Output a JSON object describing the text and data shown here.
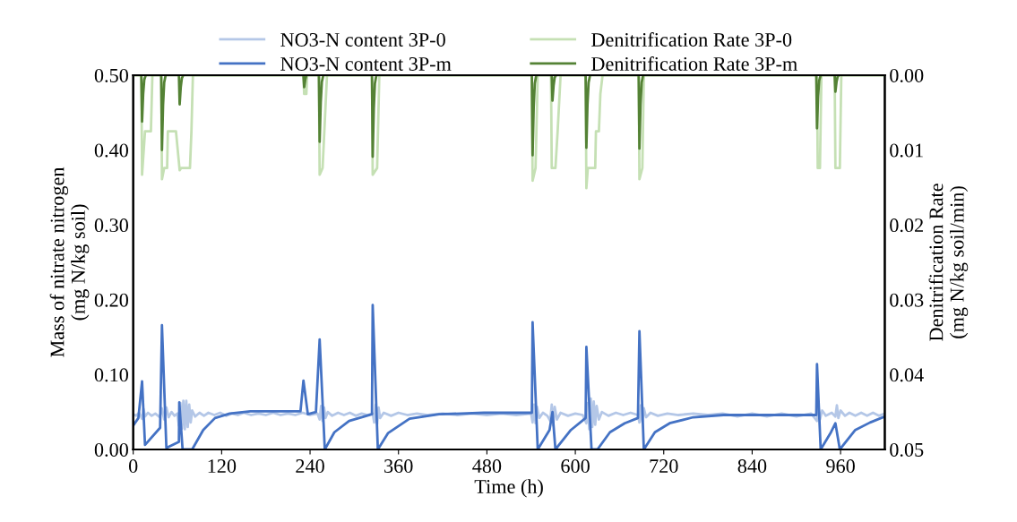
{
  "chart_data": {
    "type": "line",
    "xlabel": "Time (h)",
    "ylabel": "Mass of nitrate nitrogen\n(mg N/kg soil)",
    "y2label": "Denitrification Rate\n(mg N/kg soil/min)",
    "xlim": [
      0,
      1020
    ],
    "xticks": [
      0,
      120,
      240,
      360,
      480,
      600,
      720,
      840,
      960
    ],
    "ylim": [
      0,
      0.5
    ],
    "yticks": [
      {
        "value": 0,
        "label": "0.00"
      },
      {
        "value": 0.1,
        "label": "0.10"
      },
      {
        "value": 0.2,
        "label": "0.20"
      },
      {
        "value": 0.3,
        "label": "0.30"
      },
      {
        "value": 0.4,
        "label": "0.40"
      },
      {
        "value": 0.5,
        "label": "0.50"
      }
    ],
    "y2lim": [
      0.05,
      0
    ],
    "y2ticks": [
      {
        "value": 0,
        "label": "0.00"
      },
      {
        "value": 0.01,
        "label": "0.01"
      },
      {
        "value": 0.02,
        "label": "0.02"
      },
      {
        "value": 0.03,
        "label": "0.03"
      },
      {
        "value": 0.04,
        "label": "0.04"
      },
      {
        "value": 0.05,
        "label": "0.05"
      }
    ],
    "grid": false,
    "legend": "top",
    "marker": "none",
    "line_style": "solid",
    "series": [
      {
        "name": "NO3-N content 3P-0",
        "color": "#b4c7e7",
        "x": [
          0,
          4,
          8,
          12,
          14,
          16,
          20,
          25,
          30,
          36,
          39,
          42,
          45,
          48,
          52,
          56,
          60,
          62,
          64,
          66,
          68,
          70,
          72,
          74,
          76,
          78,
          80,
          84,
          90,
          96,
          102,
          110,
          118,
          126,
          134,
          142,
          150,
          160,
          170,
          180,
          190,
          200,
          210,
          220,
          230,
          240,
          250,
          253,
          255,
          257,
          259,
          261,
          264,
          270,
          278,
          286,
          294,
          302,
          310,
          318,
          325,
          327,
          329,
          331,
          333,
          335,
          340,
          350,
          360,
          372,
          385,
          400,
          420,
          440,
          460,
          480,
          500,
          520,
          540,
          542,
          544,
          546,
          548,
          551,
          556,
          562,
          566,
          568,
          570,
          572,
          575,
          580,
          590,
          600,
          610,
          615,
          617,
          619,
          621,
          623,
          625,
          627,
          629,
          632,
          636,
          645,
          655,
          665,
          675,
          685,
          687,
          689,
          691,
          693,
          696,
          702,
          712,
          725,
          740,
          760,
          780,
          800,
          820,
          840,
          860,
          880,
          900,
          920,
          928,
          930,
          932,
          935,
          940,
          948,
          953,
          955,
          957,
          960,
          966,
          972,
          980,
          988,
          996,
          1004,
          1012,
          1020
        ],
        "values": [
          0.047,
          0.045,
          0.049,
          0.041,
          0.054,
          0.044,
          0.049,
          0.045,
          0.048,
          0.043,
          0.055,
          0.04,
          0.056,
          0.043,
          0.05,
          0.045,
          0.048,
          0.032,
          0.062,
          0.028,
          0.065,
          0.027,
          0.065,
          0.03,
          0.06,
          0.036,
          0.052,
          0.044,
          0.049,
          0.045,
          0.049,
          0.046,
          0.049,
          0.045,
          0.048,
          0.046,
          0.049,
          0.046,
          0.048,
          0.046,
          0.049,
          0.046,
          0.048,
          0.046,
          0.049,
          0.046,
          0.048,
          0.04,
          0.058,
          0.038,
          0.056,
          0.042,
          0.05,
          0.045,
          0.049,
          0.046,
          0.049,
          0.045,
          0.048,
          0.046,
          0.048,
          0.036,
          0.06,
          0.034,
          0.056,
          0.042,
          0.049,
          0.045,
          0.049,
          0.046,
          0.048,
          0.046,
          0.048,
          0.046,
          0.048,
          0.046,
          0.048,
          0.046,
          0.048,
          0.036,
          0.06,
          0.035,
          0.057,
          0.042,
          0.049,
          0.045,
          0.038,
          0.06,
          0.032,
          0.057,
          0.04,
          0.049,
          0.045,
          0.048,
          0.046,
          0.035,
          0.062,
          0.027,
          0.068,
          0.03,
          0.064,
          0.033,
          0.058,
          0.04,
          0.05,
          0.045,
          0.049,
          0.046,
          0.049,
          0.046,
          0.036,
          0.059,
          0.037,
          0.055,
          0.043,
          0.049,
          0.045,
          0.048,
          0.046,
          0.048,
          0.046,
          0.048,
          0.044,
          0.048,
          0.044,
          0.048,
          0.044,
          0.048,
          0.038,
          0.058,
          0.04,
          0.052,
          0.045,
          0.049,
          0.044,
          0.059,
          0.042,
          0.052,
          0.045,
          0.049,
          0.045,
          0.049,
          0.045,
          0.049,
          0.045,
          0.048
        ]
      },
      {
        "name": "NO3-N content 3P-m",
        "color": "#4472c4",
        "x": [
          0,
          7,
          12,
          16,
          36.5,
          39,
          45,
          62,
          62.5,
          67,
          80,
          95,
          111,
          131,
          159,
          227,
          231,
          237,
          248,
          253,
          260,
          273,
          293,
          324,
          325,
          332,
          346,
          375,
          415,
          476,
          541,
          542,
          549,
          565,
          569,
          573,
          594,
          614,
          615,
          622,
          630,
          647,
          667,
          685,
          687,
          693,
          708,
          728,
          760,
          801,
          927,
          928,
          933,
          947,
          953,
          959,
          980,
          1000,
          1020
        ],
        "values": [
          0.032,
          0.042,
          0.091,
          0.006,
          0.029,
          0.166,
          0.002,
          0.01,
          0.063,
          0.0,
          0.0,
          0.026,
          0.042,
          0.048,
          0.051,
          0.051,
          0.092,
          0.047,
          0.05,
          0.147,
          0.0,
          0.023,
          0.038,
          0.047,
          0.193,
          0.0,
          0.022,
          0.041,
          0.047,
          0.049,
          0.049,
          0.17,
          0.0,
          0.026,
          0.05,
          0.0,
          0.026,
          0.042,
          0.137,
          0.0,
          0.0,
          0.023,
          0.035,
          0.042,
          0.158,
          0.0,
          0.023,
          0.035,
          0.043,
          0.046,
          0.046,
          0.114,
          0.0,
          0.023,
          0.035,
          0.0,
          0.026,
          0.036,
          0.044
        ]
      },
      {
        "name": "Denitrification Rate 3P-0",
        "color": "#c5e0b4",
        "axis": "y2",
        "x": [
          0,
          11,
          12,
          16,
          24,
          26,
          38,
          39,
          42,
          46,
          47,
          58,
          63,
          65,
          77,
          79,
          81,
          231,
          232,
          235,
          236,
          252,
          253,
          257,
          263,
          324,
          325,
          331,
          334,
          541,
          542,
          546,
          549,
          567,
          568,
          573,
          576,
          580,
          614,
          615,
          617,
          627,
          628,
          632,
          634,
          637,
          686,
          687,
          691,
          693,
          928,
          929,
          932,
          934,
          952,
          953,
          959,
          961,
          1020
        ],
        "values": [
          0,
          0,
          0.0133,
          0.0075,
          0.0075,
          0,
          0,
          0.0139,
          0.0124,
          0.0124,
          0.0075,
          0.0075,
          0.0127,
          0.0124,
          0.0124,
          0.0075,
          0,
          0,
          0.0025,
          0.0025,
          0,
          0,
          0.0133,
          0.0124,
          0,
          0,
          0.0133,
          0.0124,
          0,
          0,
          0.0141,
          0.0124,
          0,
          0,
          0.0124,
          0.0124,
          0.0075,
          0,
          0,
          0.0151,
          0.0124,
          0.0124,
          0.0075,
          0.0075,
          0.0025,
          0,
          0,
          0.0139,
          0.0124,
          0,
          0,
          0.0124,
          0.0124,
          0,
          0,
          0.0124,
          0.0124,
          0,
          0
        ]
      },
      {
        "name": "Denitrification Rate 3P-m",
        "color": "#548235",
        "axis": "y2",
        "x": [
          0,
          11,
          12,
          13.5,
          15,
          17,
          38,
          39,
          40.5,
          42,
          44,
          62,
          63,
          64.5,
          66,
          68,
          231,
          232,
          233.5,
          235,
          252,
          253,
          254.5,
          256,
          258,
          324,
          325,
          326.5,
          328,
          330,
          541,
          542,
          543.5,
          545,
          547,
          568,
          569,
          570.5,
          572,
          574,
          614,
          615,
          616.5,
          618,
          620,
          686,
          687,
          688.5,
          690,
          692,
          927,
          928,
          929.5,
          931,
          933,
          952,
          953,
          954.5,
          956,
          958,
          1020
        ],
        "values": [
          0,
          0,
          0.0062,
          0.0025,
          0.0006,
          0,
          0,
          0.01,
          0.004,
          0.001,
          0,
          0,
          0.0039,
          0.0016,
          0.0004,
          0,
          0,
          0.0016,
          0.0006,
          0,
          0,
          0.0089,
          0.0036,
          0.0009,
          0,
          0,
          0.0109,
          0.0044,
          0.0011,
          0,
          0,
          0.0107,
          0.0043,
          0.0011,
          0,
          0,
          0.0034,
          0.0014,
          0.0003,
          0,
          0,
          0.0097,
          0.0039,
          0.001,
          0,
          0,
          0.0098,
          0.0039,
          0.001,
          0,
          0,
          0.0071,
          0.0028,
          0.0007,
          0,
          0,
          0.0022,
          0.0009,
          0.0002,
          0,
          0
        ]
      }
    ]
  }
}
